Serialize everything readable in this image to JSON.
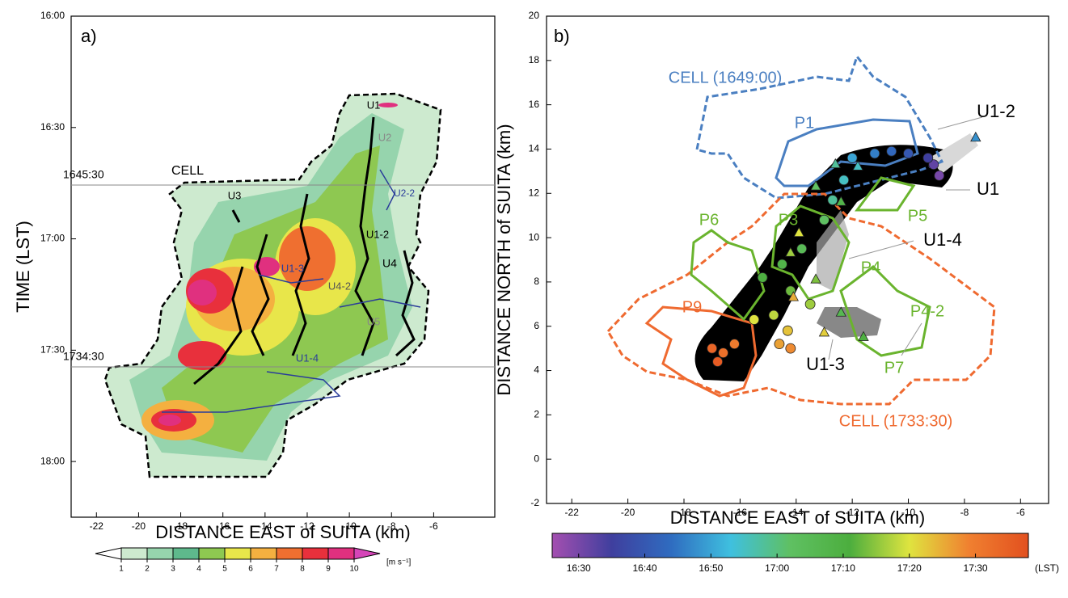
{
  "chart_data": [
    {
      "type": "contour",
      "panel_label": "a)",
      "xlabel": "DISTANCE EAST of SUITA (km)",
      "ylabel": "TIME (LST)",
      "xlim": [
        -23.2,
        -3.1
      ],
      "xticks": [
        -22,
        -20,
        -18,
        -16,
        -14,
        -12,
        -10,
        -8,
        -6
      ],
      "ylim": [
        1095,
        960
      ],
      "yticks": [
        {
          "value": 960,
          "label": "16:00"
        },
        {
          "value": 990,
          "label": "16:30"
        },
        {
          "value": 1020,
          "label": "17:00"
        },
        {
          "value": 1050,
          "label": "17:30"
        },
        {
          "value": 1080,
          "label": "18:00"
        }
      ],
      "reference_lines": [
        {
          "value": 1005.5,
          "label": "1645:30"
        },
        {
          "value": 1054.5,
          "label": "1734:30"
        }
      ],
      "annotations": [
        {
          "text": "CELL",
          "color": "#000000"
        },
        {
          "text": "U1",
          "color": "#000000"
        },
        {
          "text": "U2",
          "color": "#888888"
        },
        {
          "text": "U2-2",
          "color": "#2a3d9a"
        },
        {
          "text": "U3",
          "color": "#000000"
        },
        {
          "text": "U1-2",
          "color": "#000000"
        },
        {
          "text": "U4",
          "color": "#000000"
        },
        {
          "text": "U1-3",
          "color": "#2a3d9a"
        },
        {
          "text": "U4-2",
          "color": "#555555"
        },
        {
          "text": "U5",
          "color": "#888888"
        },
        {
          "text": "U1-4",
          "color": "#2a3d9a"
        }
      ],
      "colorbar": {
        "label": "[m s⁻¹]",
        "ticks": [
          1,
          2,
          3,
          4,
          5,
          6,
          7,
          8,
          9,
          10
        ],
        "colors": [
          "#ffffff",
          "#cdeacf",
          "#96d4ad",
          "#5eb98c",
          "#8ec851",
          "#e8e64a",
          "#f4b040",
          "#ef6f30",
          "#e8303c",
          "#e0307f",
          "#d545b8"
        ]
      }
    },
    {
      "type": "scatter",
      "panel_label": "b)",
      "xlabel": "DISTANCE EAST of SUITA (km)",
      "ylabel": "DISTANCE NORTH of SUITA (km)",
      "xlim": [
        -22.9,
        -5
      ],
      "xticks": [
        -22,
        -20,
        -18,
        -16,
        -14,
        -12,
        -10,
        -8,
        -6
      ],
      "ylim": [
        -2,
        20
      ],
      "yticks": [
        -2,
        0,
        2,
        4,
        6,
        8,
        10,
        12,
        14,
        16,
        18,
        20
      ],
      "series": [
        {
          "marker": "circle",
          "x": [
            -8.9,
            -9.1,
            -9.3,
            -10,
            -10.6,
            -11.2,
            -12,
            -12.3,
            -12.7,
            -13,
            -13.8,
            -14.5,
            -15.2,
            -14.2,
            -13.5,
            -14.8,
            -15.5,
            -14.3,
            -14.6,
            -14.2,
            -16.2,
            -16.6,
            -17,
            -16.8
          ],
          "y": [
            12.8,
            13.3,
            13.6,
            13.8,
            13.9,
            13.8,
            13.6,
            12.6,
            11.7,
            10.8,
            9.5,
            8.8,
            8.2,
            7.6,
            7,
            6.5,
            6.3,
            5.8,
            5.2,
            5,
            5.2,
            4.8,
            5,
            4.4
          ],
          "time": [
            990,
            992,
            995,
            1000,
            1003,
            1006,
            1010,
            1015,
            1018,
            1022,
            1025,
            1028,
            1030,
            1033,
            1036,
            1038,
            1040,
            1043,
            1046,
            1048,
            1050,
            1052,
            1054,
            1056
          ]
        },
        {
          "marker": "triangle",
          "x": [
            -7.6,
            -11.8,
            -12.6,
            -13.3,
            -12.4,
            -13.9,
            -14.2,
            -13.3,
            -12.4,
            -11.6,
            -13,
            -14.1
          ],
          "y": [
            14.5,
            13.2,
            13.3,
            12.3,
            11.6,
            10.2,
            9.3,
            8.1,
            6.6,
            5.5,
            5.7,
            7.3
          ],
          "time": [
            1008,
            1015,
            1018,
            1022,
            1028,
            1040,
            1036,
            1034,
            1026,
            1030,
            1042,
            1045
          ]
        }
      ],
      "annotations": [
        {
          "text": "CELL (1649:00)",
          "color": "#4a7fc1"
        },
        {
          "text": "P1",
          "color": "#4a7fc1"
        },
        {
          "text": "U1-2",
          "color": "#000000"
        },
        {
          "text": "U1",
          "color": "#000000"
        },
        {
          "text": "P5",
          "color": "#6ab42e"
        },
        {
          "text": "P6",
          "color": "#6ab42e"
        },
        {
          "text": "P3",
          "color": "#6ab42e"
        },
        {
          "text": "U1-4",
          "color": "#000000"
        },
        {
          "text": "P4",
          "color": "#6ab42e"
        },
        {
          "text": "P4-2",
          "color": "#6ab42e"
        },
        {
          "text": "P9",
          "color": "#ef6a30"
        },
        {
          "text": "U1-3",
          "color": "#000000"
        },
        {
          "text": "P7",
          "color": "#6ab42e"
        },
        {
          "text": "CELL (1733:30)",
          "color": "#ef6a30"
        }
      ],
      "colorbar": {
        "label": "(LST)",
        "lim": [
          986,
          1058
        ],
        "ticks": [
          {
            "value": 990,
            "label": "16:30"
          },
          {
            "value": 1000,
            "label": "16:40"
          },
          {
            "value": 1010,
            "label": "16:50"
          },
          {
            "value": 1020,
            "label": "17:00"
          },
          {
            "value": 1030,
            "label": "17:10"
          },
          {
            "value": 1040,
            "label": "17:20"
          },
          {
            "value": 1050,
            "label": "17:30"
          }
        ],
        "colors": [
          "#a44fb0",
          "#3f3f9e",
          "#2f6cc0",
          "#3fc0df",
          "#5fc062",
          "#4cae3e",
          "#dfe43f",
          "#f08030",
          "#e2501f"
        ]
      }
    }
  ]
}
